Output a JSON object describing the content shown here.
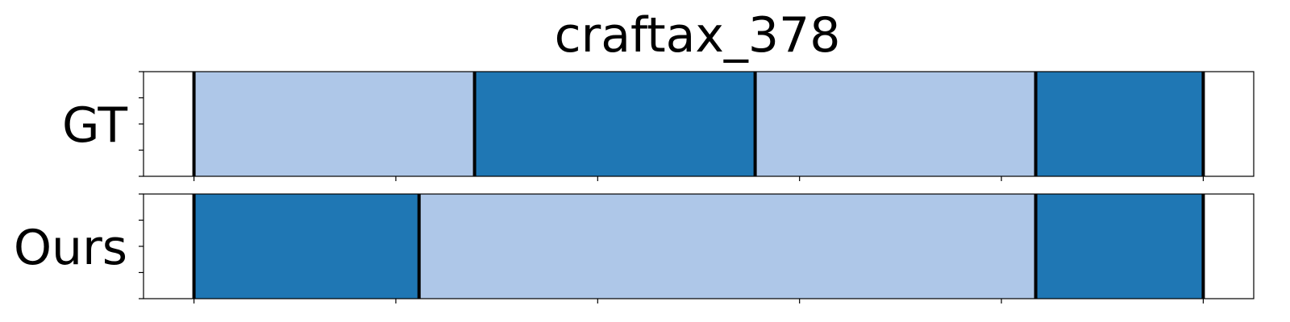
{
  "chart_data": {
    "type": "timeline",
    "title": "craftax_378",
    "x_range": [
      -0.05,
      1.05
    ],
    "x_ticks": [
      0,
      0.2,
      0.4,
      0.6,
      0.8,
      1.0
    ],
    "colors": {
      "light": "#aec7e8",
      "dark": "#1f77b4",
      "boundary": "#000000"
    },
    "rows": [
      {
        "label": "GT",
        "segments": [
          {
            "start": 0.0,
            "end": 0.278,
            "color": "light"
          },
          {
            "start": 0.278,
            "end": 0.556,
            "color": "dark"
          },
          {
            "start": 0.556,
            "end": 0.834,
            "color": "light"
          },
          {
            "start": 0.834,
            "end": 1.0,
            "color": "dark"
          }
        ]
      },
      {
        "label": "Ours",
        "segments": [
          {
            "start": 0.0,
            "end": 0.223,
            "color": "dark"
          },
          {
            "start": 0.223,
            "end": 0.834,
            "color": "light"
          },
          {
            "start": 0.834,
            "end": 1.0,
            "color": "dark"
          }
        ]
      }
    ]
  }
}
